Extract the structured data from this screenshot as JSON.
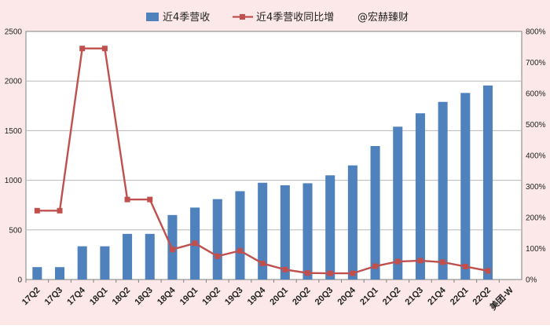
{
  "chart_data": {
    "type": "bar",
    "categories": [
      "17Q2",
      "17Q3",
      "17Q4",
      "18Q1",
      "18Q2",
      "18Q3",
      "18Q4",
      "19Q1",
      "19Q2",
      "19Q3",
      "19Q4",
      "20Q1",
      "20Q2",
      "20Q3",
      "20Q4",
      "21Q1",
      "21Q2",
      "21Q3",
      "21Q4",
      "22Q1",
      "22Q2",
      "美团-W"
    ],
    "series": [
      {
        "name": "近4季营收",
        "type": "bar",
        "axis": "left",
        "color": "#4f81bd",
        "values": [
          125,
          125,
          335,
          335,
          460,
          460,
          650,
          725,
          810,
          890,
          975,
          950,
          970,
          1050,
          1150,
          1345,
          1540,
          1675,
          1790,
          1880,
          1955,
          null
        ]
      },
      {
        "name": "近4季营收同比增",
        "type": "line",
        "axis": "right",
        "color": "#c0504d",
        "values": [
          222,
          222,
          745,
          745,
          258,
          258,
          97,
          117,
          75,
          93,
          52,
          32,
          21,
          20,
          20,
          43,
          58,
          61,
          56,
          42,
          28,
          null
        ]
      }
    ],
    "watermark": "@宏赫臻财",
    "y_left": {
      "ylim": [
        0,
        2500
      ],
      "ticks": [
        "0",
        "500",
        "1000",
        "1500",
        "2000",
        "2500"
      ]
    },
    "y_right": {
      "ylim": [
        0,
        800
      ],
      "ticks": [
        "0%",
        "100%",
        "200%",
        "300%",
        "400%",
        "500%",
        "600%",
        "700%",
        "800%"
      ]
    },
    "grid": true,
    "legend_position": "top"
  }
}
